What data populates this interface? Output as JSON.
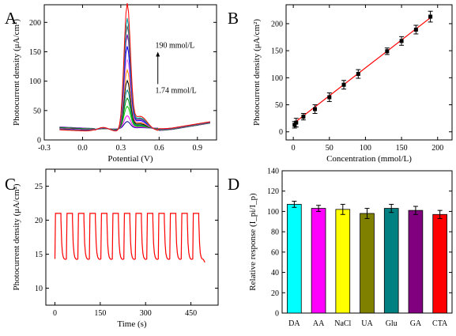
{
  "chart_data": [
    {
      "panel": "A",
      "type": "line",
      "xlabel": "Potential (V)",
      "ylabel": "Photocurrent density (μA/cm²)",
      "xlim": [
        -0.3,
        1.05
      ],
      "ylim": [
        0,
        230
      ],
      "xticks": [
        -0.3,
        0.0,
        0.3,
        0.6,
        0.9
      ],
      "xtick_labels": [
        "-0.3",
        "0.0",
        "0.3",
        "0.6",
        "0.9"
      ],
      "yticks": [
        0,
        50,
        100,
        150,
        200
      ],
      "annotation_top": "190 mmol/L",
      "annotation_bottom": "1.74 mmol/L",
      "peak_x": 0.35,
      "series": [
        {
          "color": "#00008b",
          "peak": 12
        },
        {
          "color": "#ff00ff",
          "peak": 22
        },
        {
          "color": "#00cc00",
          "peak": 38
        },
        {
          "color": "#008800",
          "peak": 52
        },
        {
          "color": "#008888",
          "peak": 66
        },
        {
          "color": "#000000",
          "peak": 82
        },
        {
          "color": "#ff8c00",
          "peak": 100
        },
        {
          "color": "#ee82ee",
          "peak": 118
        },
        {
          "color": "#0000ff",
          "peak": 140
        },
        {
          "color": "#6a0dad",
          "peak": 160
        },
        {
          "color": "#666666",
          "peak": 175
        },
        {
          "color": "#00aaaa",
          "peak": 188
        },
        {
          "color": "#ff0000",
          "peak": 213
        }
      ]
    },
    {
      "panel": "B",
      "type": "scatter",
      "xlabel": "Concentration (mmol/L)",
      "ylabel": "Photocurrent density (μA/cm²)",
      "xlim": [
        -10,
        220
      ],
      "ylim": [
        -15,
        235
      ],
      "xticks": [
        0,
        50,
        100,
        150,
        200
      ],
      "yticks": [
        0,
        50,
        100,
        150,
        200
      ],
      "x": [
        1.74,
        4,
        14,
        30,
        50,
        70,
        90,
        130,
        150,
        170,
        190
      ],
      "y": [
        13,
        17,
        28,
        42,
        64,
        87,
        107,
        149,
        168,
        189,
        213
      ],
      "err": [
        6,
        8,
        6,
        8,
        8,
        8,
        8,
        6,
        8,
        8,
        10
      ],
      "fit_line": {
        "x": [
          1.74,
          190
        ],
        "y": [
          17,
          211
        ],
        "color": "#ff0000"
      }
    },
    {
      "panel": "C",
      "type": "line",
      "xlabel": "Time (s)",
      "ylabel": "Photocurrent density (μA/cm²)",
      "xlim": [
        -30,
        540
      ],
      "ylim": [
        7.5,
        27.5
      ],
      "xticks": [
        0,
        150,
        300,
        450
      ],
      "yticks": [
        10,
        15,
        20,
        25
      ],
      "color": "#ff0000",
      "high": 21,
      "low": 14,
      "cycle_starts": [
        0,
        38,
        76,
        114,
        152,
        190,
        228,
        266,
        304,
        342,
        380,
        418,
        456
      ]
    },
    {
      "panel": "D",
      "type": "bar",
      "xlabel": "",
      "ylabel": "Relative response (I_pi/I_p)",
      "ylim": [
        0,
        140
      ],
      "yticks": [
        0,
        20,
        40,
        60,
        80,
        100,
        120,
        140
      ],
      "categories": [
        "DA",
        "AA",
        "NaCl",
        "UA",
        "Glu",
        "GA",
        "CTA"
      ],
      "values": [
        107,
        103,
        102,
        98,
        103,
        101,
        97
      ],
      "err": [
        3,
        3,
        5,
        5,
        4,
        4,
        4
      ],
      "colors": [
        "#00ffff",
        "#ff00ff",
        "#ffff00",
        "#808000",
        "#008080",
        "#800080",
        "#ff0000"
      ]
    }
  ],
  "labels": {
    "A": "A",
    "B": "B",
    "C": "C",
    "D": "D"
  }
}
